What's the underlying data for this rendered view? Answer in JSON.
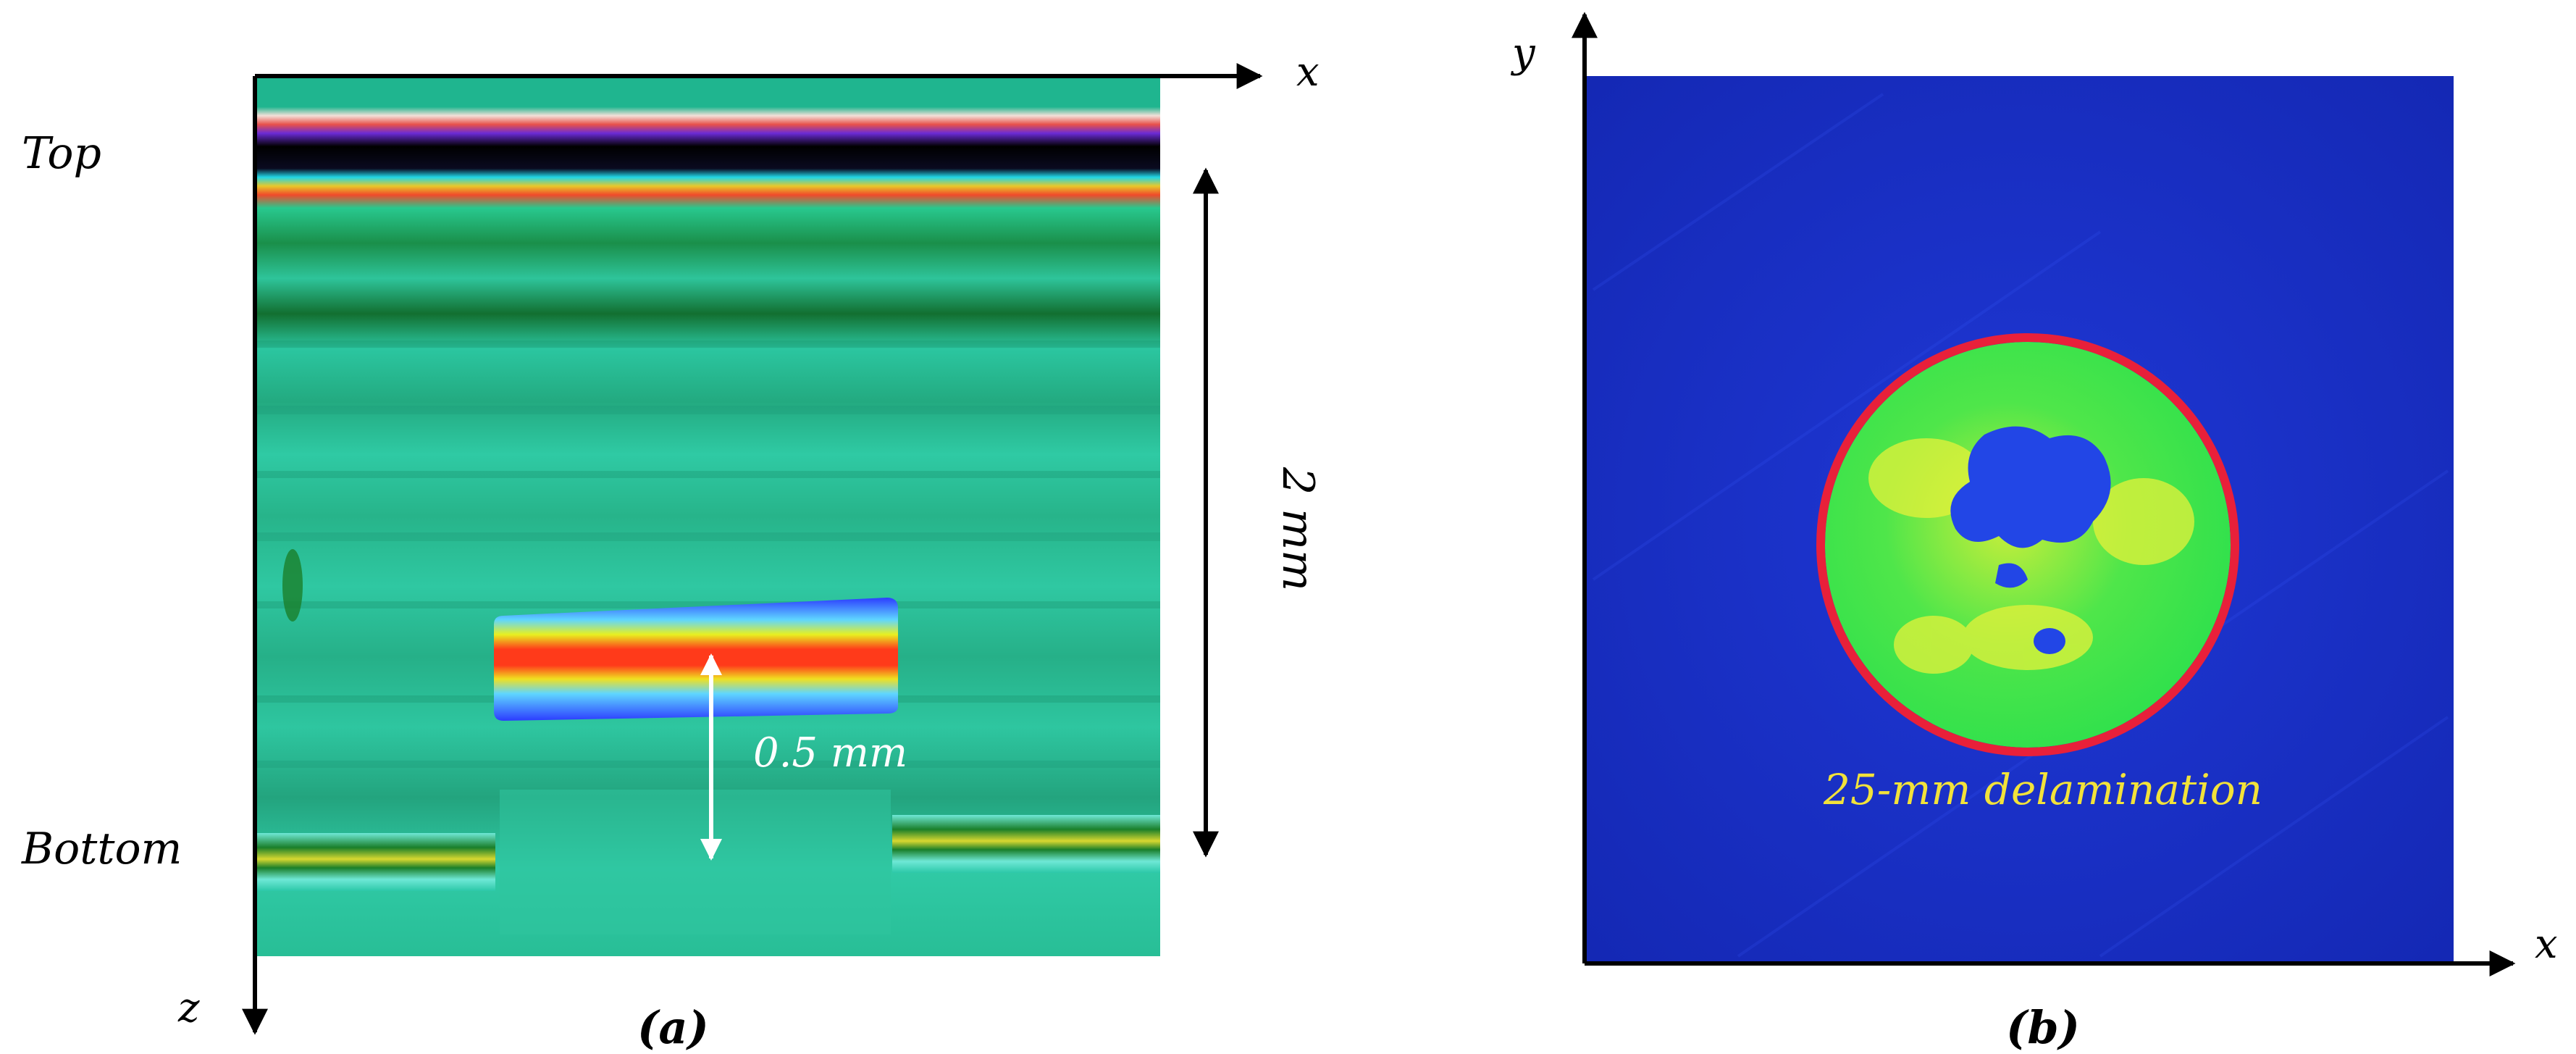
{
  "panel_a": {
    "caption": "(a)",
    "top_label": "Top",
    "bottom_label": "Bottom",
    "x_axis_label": "x",
    "z_axis_label": "z",
    "thickness_label": "2 mm",
    "defect_depth_label": "0.5 mm"
  },
  "panel_b": {
    "caption": "(b)",
    "x_axis_label": "x",
    "y_axis_label": "y",
    "delamination_label": "25-mm delamination",
    "colors": {
      "background": "#1a2fc8",
      "defect_fill": "#2fe84a",
      "defect_highlight": "#e6f23a",
      "defect_outline": "#e8203a",
      "label": "#f2e23a"
    }
  }
}
